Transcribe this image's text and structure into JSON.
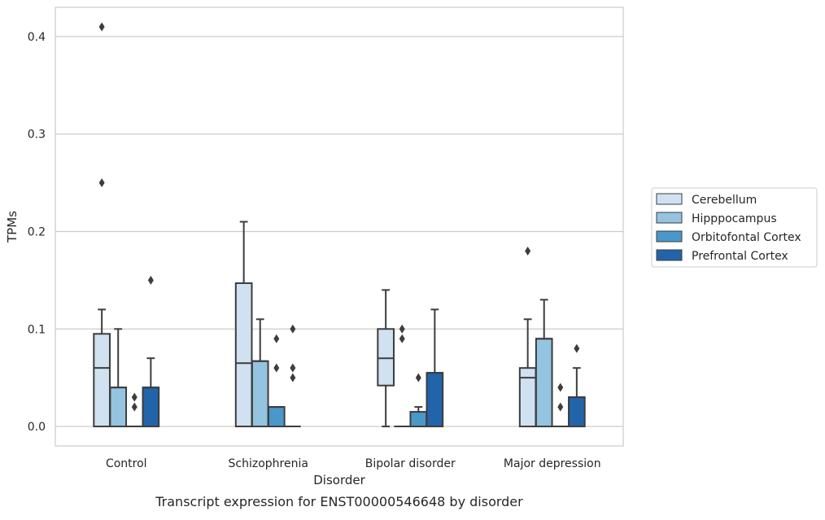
{
  "chart_data": {
    "type": "box",
    "xlabel": "Disorder",
    "ylabel": "TPMs",
    "caption": "Transcript expression for ENST00000546648 by disorder",
    "ylim": [
      -0.02,
      0.43
    ],
    "yticks": [
      "0.0",
      "0.1",
      "0.2",
      "0.3",
      "0.4"
    ],
    "grid": "horizontal",
    "legend_position": "right",
    "categories": [
      "Control",
      "Schizophrenia",
      "Bipolar disorder",
      "Major depression"
    ],
    "series": [
      {
        "name": "Cerebellum",
        "color": "#d0e1f2",
        "boxes": [
          {
            "q1": 0.0,
            "median": 0.06,
            "q3": 0.095,
            "whisker_low": 0.0,
            "whisker_high": 0.12,
            "outliers": [
              0.25,
              0.41
            ]
          },
          {
            "q1": 0.0,
            "median": 0.065,
            "q3": 0.147,
            "whisker_low": 0.0,
            "whisker_high": 0.21,
            "outliers": []
          },
          {
            "q1": 0.042,
            "median": 0.07,
            "q3": 0.1,
            "whisker_low": 0.0,
            "whisker_high": 0.14,
            "outliers": []
          },
          {
            "q1": 0.0,
            "median": 0.05,
            "q3": 0.06,
            "whisker_low": 0.0,
            "whisker_high": 0.11,
            "outliers": [
              0.18
            ]
          }
        ]
      },
      {
        "name": "Hipppocampus",
        "color": "#94c4df",
        "boxes": [
          {
            "q1": 0.0,
            "median": 0.04,
            "q3": 0.04,
            "whisker_low": 0.0,
            "whisker_high": 0.1,
            "outliers": []
          },
          {
            "q1": 0.0,
            "median": 0.067,
            "q3": 0.067,
            "whisker_low": 0.0,
            "whisker_high": 0.11,
            "outliers": []
          },
          {
            "q1": 0.0,
            "median": 0.0,
            "q3": 0.0,
            "whisker_low": 0.0,
            "whisker_high": 0.0,
            "outliers": [
              0.09,
              0.1
            ]
          },
          {
            "q1": 0.0,
            "median": 0.09,
            "q3": 0.09,
            "whisker_low": 0.0,
            "whisker_high": 0.13,
            "outliers": []
          }
        ]
      },
      {
        "name": "Orbitofontal Cortex",
        "color": "#4a98c9",
        "boxes": [
          {
            "q1": 0.0,
            "median": 0.0,
            "q3": 0.0,
            "whisker_low": 0.0,
            "whisker_high": 0.0,
            "outliers": [
              0.02,
              0.03
            ]
          },
          {
            "q1": 0.0,
            "median": 0.02,
            "q3": 0.02,
            "whisker_low": 0.0,
            "whisker_high": 0.02,
            "outliers": [
              0.06,
              0.09
            ]
          },
          {
            "q1": 0.0,
            "median": 0.0,
            "q3": 0.015,
            "whisker_low": 0.0,
            "whisker_high": 0.02,
            "outliers": [
              0.05
            ]
          },
          {
            "q1": 0.0,
            "median": 0.0,
            "q3": 0.0,
            "whisker_low": 0.0,
            "whisker_high": 0.0,
            "outliers": [
              0.02,
              0.04
            ]
          }
        ]
      },
      {
        "name": "Prefrontal Cortex",
        "color": "#2264a9",
        "boxes": [
          {
            "q1": 0.0,
            "median": 0.04,
            "q3": 0.04,
            "whisker_low": 0.0,
            "whisker_high": 0.07,
            "outliers": [
              0.15
            ]
          },
          {
            "q1": 0.0,
            "median": 0.0,
            "q3": 0.0,
            "whisker_low": 0.0,
            "whisker_high": 0.0,
            "outliers": [
              0.05,
              0.06,
              0.1
            ]
          },
          {
            "q1": 0.0,
            "median": 0.055,
            "q3": 0.055,
            "whisker_low": 0.0,
            "whisker_high": 0.12,
            "outliers": []
          },
          {
            "q1": 0.0,
            "median": 0.03,
            "q3": 0.03,
            "whisker_low": 0.0,
            "whisker_high": 0.06,
            "outliers": [
              0.08
            ]
          }
        ]
      }
    ]
  }
}
